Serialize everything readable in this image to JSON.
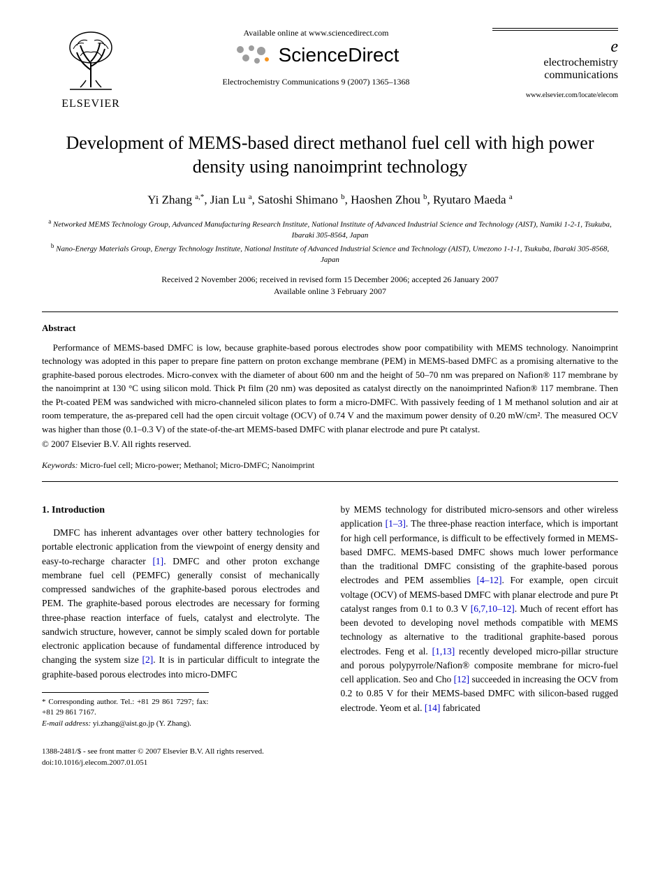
{
  "header": {
    "elsevier_name": "ELSEVIER",
    "available_online": "Available online at www.sciencedirect.com",
    "sciencedirect": "ScienceDirect",
    "journal_ref": "Electrochemistry Communications 9 (2007) 1365–1368",
    "journal_brand_e": "e",
    "journal_brand_line1": "electrochemistry",
    "journal_brand_line2": "communications",
    "journal_url": "www.elsevier.com/locate/elecom"
  },
  "title": "Development of MEMS-based direct methanol fuel cell with high power density using nanoimprint technology",
  "authors_html": "Yi Zhang <sup>a,*</sup>, Jian Lu <sup>a</sup>, Satoshi Shimano <sup>b</sup>, Haoshen Zhou <sup>b</sup>, Ryutaro Maeda <sup>a</sup>",
  "affiliations": {
    "a": "Networked MEMS Technology Group, Advanced Manufacturing Research Institute, National Institute of Advanced Industrial Science and Technology (AIST), Namiki 1-2-1, Tsukuba, Ibaraki 305-8564, Japan",
    "b": "Nano-Energy Materials Group, Energy Technology Institute, National Institute of Advanced Industrial Science and Technology (AIST), Umezono 1-1-1, Tsukuba, Ibaraki 305-8568, Japan"
  },
  "dates": {
    "line1": "Received 2 November 2006; received in revised form 15 December 2006; accepted 26 January 2007",
    "line2": "Available online 3 February 2007"
  },
  "abstract": {
    "heading": "Abstract",
    "text": "Performance of MEMS-based DMFC is low, because graphite-based porous electrodes show poor compatibility with MEMS technology. Nanoimprint technology was adopted in this paper to prepare fine pattern on proton exchange membrane (PEM) in MEMS-based DMFC as a promising alternative to the graphite-based porous electrodes. Micro-convex with the diameter of about 600 nm and the height of 50–70 nm was prepared on Nafion® 117 membrane by the nanoimprint at 130 °C using silicon mold. Thick Pt film (20 nm) was deposited as catalyst directly on the nanoimprinted Nafion® 117 membrane. Then the Pt-coated PEM was sandwiched with micro-channeled silicon plates to form a micro-DMFC. With passively feeding of 1 M methanol solution and air at room temperature, the as-prepared cell had the open circuit voltage (OCV) of 0.74 V and the maximum power density of 0.20 mW/cm². The measured OCV was higher than those (0.1–0.3 V) of the state-of-the-art MEMS-based DMFC with planar electrode and pure Pt catalyst.",
    "copyright": "© 2007 Elsevier B.V. All rights reserved."
  },
  "keywords": {
    "label": "Keywords:",
    "text": " Micro-fuel cell; Micro-power; Methanol; Micro-DMFC; Nanoimprint"
  },
  "intro": {
    "heading": "1. Introduction",
    "col1": "DMFC has inherent advantages over other battery technologies for portable electronic application from the viewpoint of energy density and easy-to-recharge character [1]. DMFC and other proton exchange membrane fuel cell (PEMFC) generally consist of mechanically compressed sandwiches of the graphite-based porous electrodes and PEM. The graphite-based porous electrodes are necessary for forming three-phase reaction interface of fuels, catalyst and electrolyte. The sandwich structure, however, cannot be simply scaled down for portable electronic application because of fundamental difference introduced by changing the system size [2]. It is in particular difficult to integrate the graphite-based porous electrodes into micro-DMFC",
    "col2": "by MEMS technology for distributed micro-sensors and other wireless application [1–3]. The three-phase reaction interface, which is important for high cell performance, is difficult to be effectively formed in MEMS-based DMFC. MEMS-based DMFC shows much lower performance than the traditional DMFC consisting of the graphite-based porous electrodes and PEM assemblies [4–12]. For example, open circuit voltage (OCV) of MEMS-based DMFC with planar electrode and pure Pt catalyst ranges from 0.1 to 0.3 V [6,7,10–12]. Much of recent effort has been devoted to developing novel methods compatible with MEMS technology as alternative to the traditional graphite-based porous electrodes. Feng et al. [1,13] recently developed micro-pillar structure and porous polypyrrole/Nafion® composite membrane for micro-fuel cell application. Seo and Cho [12] succeeded in increasing the OCV from 0.2 to 0.85 V for their MEMS-based DMFC with silicon-based rugged electrode. Yeom et al. [14] fabricated"
  },
  "footnote": {
    "corr": "* Corresponding author. Tel.: +81 29 861 7297; fax: +81 29 861 7167.",
    "email_label": "E-mail address:",
    "email": " yi.zhang@aist.go.jp (Y. Zhang)."
  },
  "footer": {
    "line1": "1388-2481/$ - see front matter © 2007 Elsevier B.V. All rights reserved.",
    "line2": "doi:10.1016/j.elecom.2007.01.051"
  },
  "colors": {
    "text": "#000000",
    "link": "#0000cc",
    "sd_grey": "#9d9d9d",
    "sd_orange": "#f7941e"
  }
}
